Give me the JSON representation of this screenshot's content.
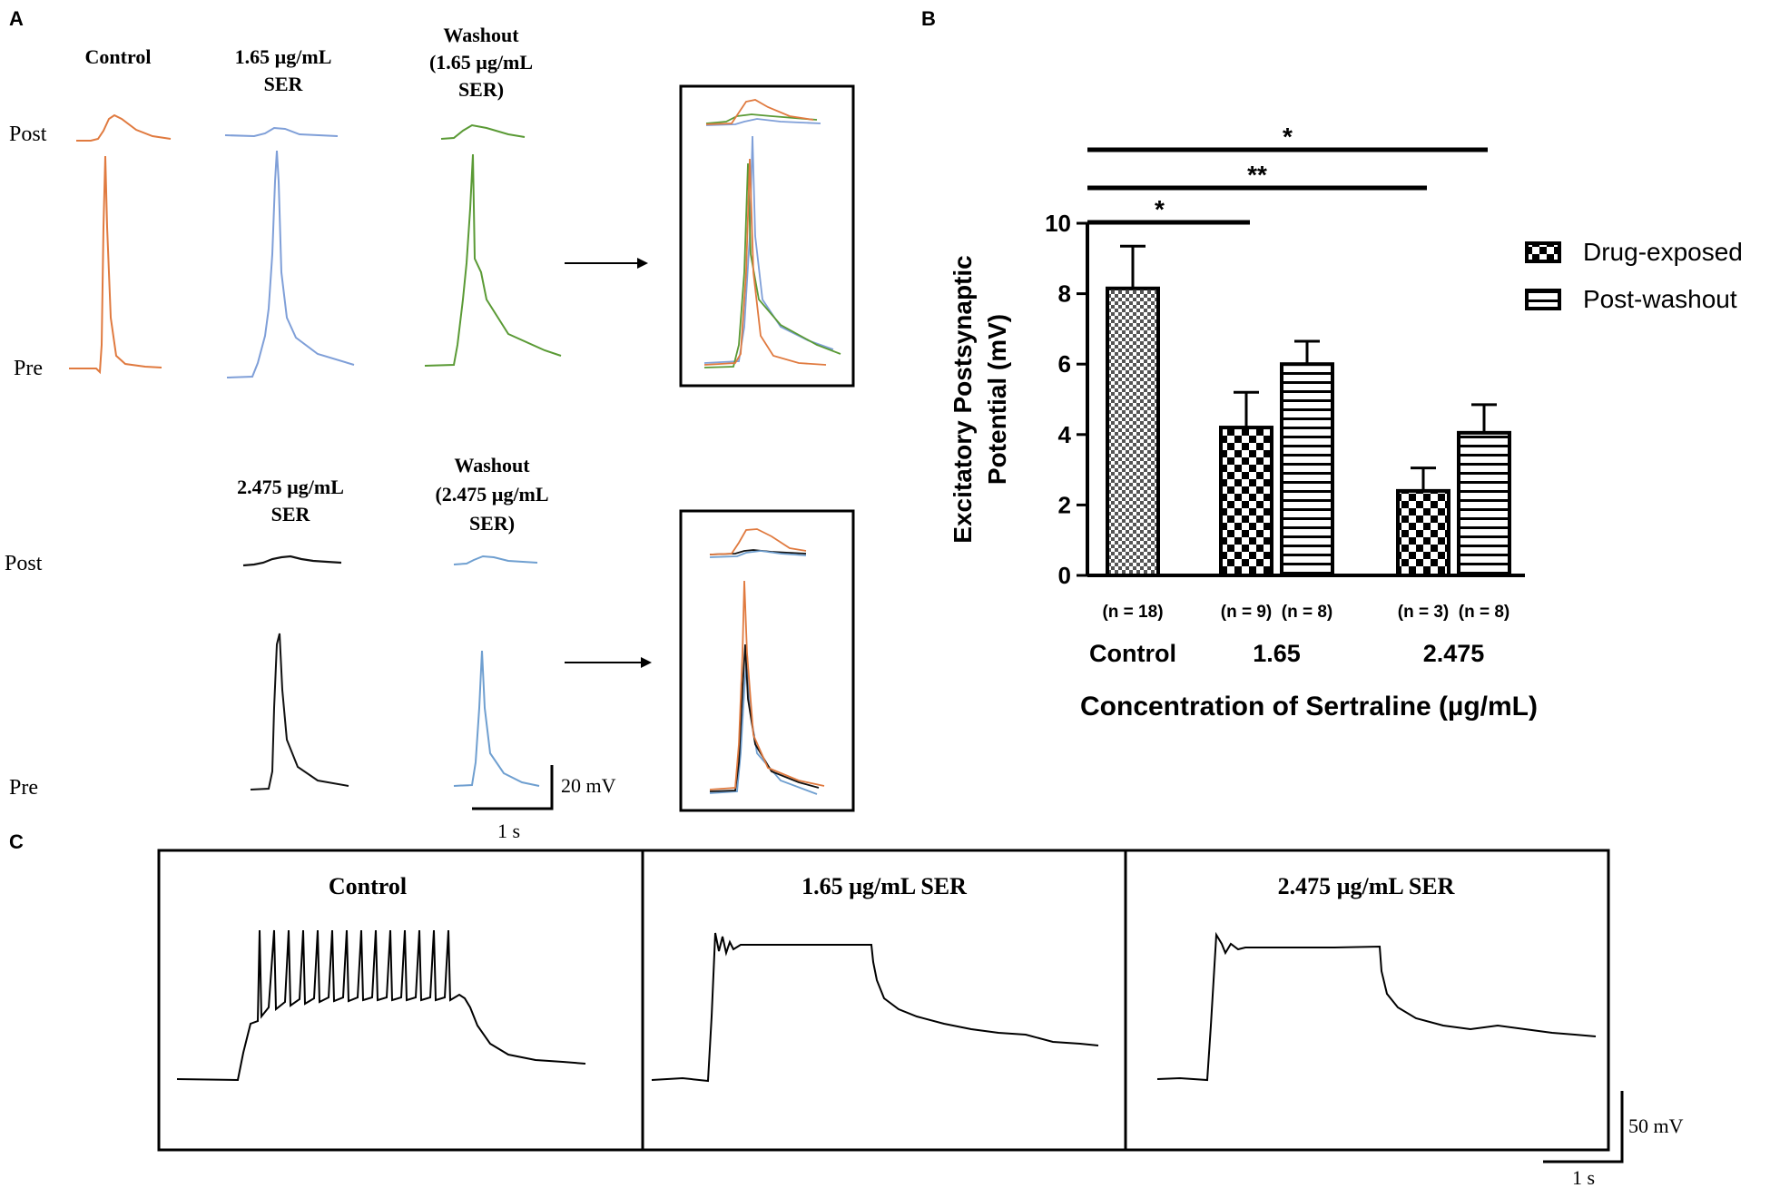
{
  "colors": {
    "control": "#e07a3f",
    "ser165": "#7f9fd8",
    "washout165": "#5a9a35",
    "ser2475": "#111111",
    "washout2475": "#6f9fd0",
    "ink": "#000000"
  },
  "panel_a": {
    "label": "A",
    "row1_headers": {
      "control": "Control",
      "ser_line1": "1.65 µg/mL",
      "ser_line2": "SER",
      "wash_line1": "Washout",
      "wash_line2": "(1.65 µg/mL",
      "wash_line3": "SER)"
    },
    "row2_headers": {
      "ser_line1": "2.475 µg/mL",
      "ser_line2": "SER",
      "wash_line1": "Washout",
      "wash_line2": "(2.475 µg/mL",
      "wash_line3": "SER)"
    },
    "post_label": "Post",
    "pre_label": "Pre",
    "scale_bar_v": "20 mV",
    "scale_bar_h": "1 s"
  },
  "panel_c": {
    "label": "C",
    "titles": [
      "Control",
      "1.65 µg/mL SER",
      "2.475 µg/mL SER"
    ],
    "scale_bar_v": "50 mV",
    "scale_bar_h": "1 s"
  },
  "chart_data": {
    "panel_label": "B",
    "type": "bar",
    "title": "",
    "ylabel_line1": "Excitatory Postsynaptic",
    "ylabel_line2": "Potential (mV)",
    "xlabel": "Concentration of Sertraline (µg/mL)",
    "ylim": [
      0,
      10
    ],
    "yticks": [
      0,
      2,
      4,
      6,
      8,
      10
    ],
    "categories": [
      "Control",
      "1.65",
      "2.475"
    ],
    "legend": [
      {
        "name": "Drug-exposed",
        "pattern": "checker"
      },
      {
        "name": "Post-washout",
        "pattern": "stripes"
      }
    ],
    "legend_position": "top-right",
    "bars": [
      {
        "category": "Control",
        "series": "Control",
        "pattern": "fine-checker",
        "value": 8.15,
        "error": 1.2,
        "n_label": "(n = 18)"
      },
      {
        "category": "1.65",
        "series": "Drug-exposed",
        "pattern": "checker",
        "value": 4.2,
        "error": 1.0,
        "n_label": "(n = 9)"
      },
      {
        "category": "1.65",
        "series": "Post-washout",
        "pattern": "stripes",
        "value": 6.0,
        "error": 0.65,
        "n_label": "(n = 8)"
      },
      {
        "category": "2.475",
        "series": "Drug-exposed",
        "pattern": "checker",
        "value": 2.4,
        "error": 0.65,
        "n_label": "(n = 3)"
      },
      {
        "category": "2.475",
        "series": "Post-washout",
        "pattern": "stripes",
        "value": 4.05,
        "error": 0.8,
        "n_label": "(n = 8)"
      }
    ],
    "significance": [
      {
        "from": "Control",
        "to": "1.65 drug-exposed",
        "label": "*"
      },
      {
        "from": "Control",
        "to": "2.475 drug-exposed",
        "label": "**"
      },
      {
        "from": "Control",
        "to": "2.475 post-washout",
        "label": "*"
      }
    ]
  }
}
